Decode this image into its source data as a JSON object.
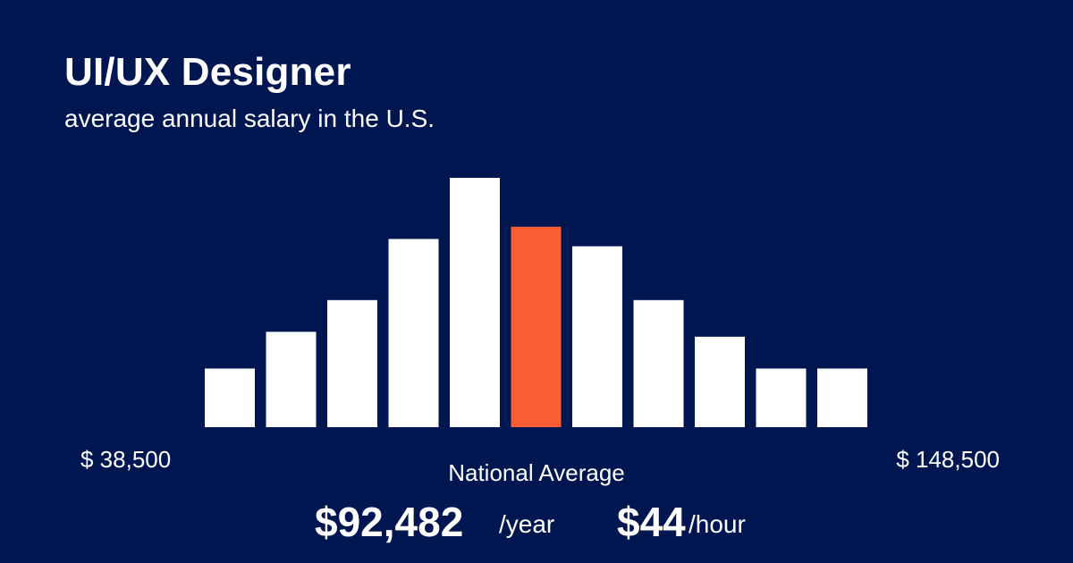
{
  "header": {
    "title": "UI/UX Designer",
    "subtitle": "average annual salary in the U.S."
  },
  "range": {
    "min_label": "$ 38,500",
    "max_label": "$ 148,500"
  },
  "summary": {
    "label": "National Average",
    "yearly_value": "$92,482",
    "yearly_unit": "/year",
    "hourly_value": "$44",
    "hourly_unit": "/hour"
  },
  "colors": {
    "background": "#001651",
    "bar": "#ffffff",
    "highlight": "#fb5d34"
  },
  "chart_data": {
    "type": "bar",
    "values": [
      2.4,
      3.9,
      5.2,
      7.7,
      10.2,
      8.2,
      7.4,
      5.2,
      3.7,
      2.4,
      2.4
    ],
    "highlight_index": 5,
    "x_range": [
      "$ 38,500",
      "$ 148,500"
    ],
    "ylim": [
      0,
      10.2
    ],
    "grid": false,
    "legend": "none"
  }
}
